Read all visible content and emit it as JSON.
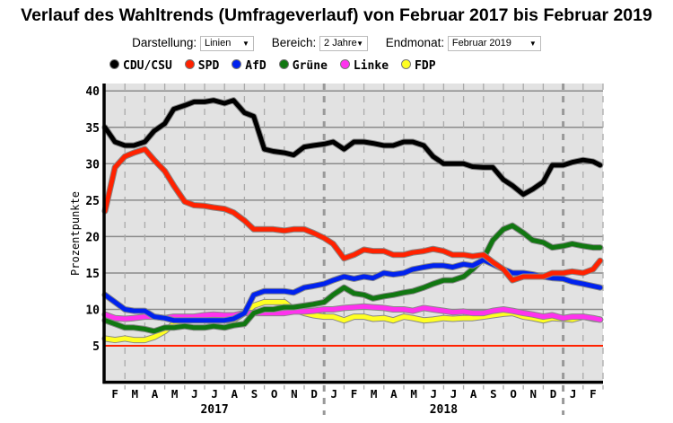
{
  "title": "Verlauf des Wahltrends (Umfrageverlauf) von Februar 2017 bis Februar 2019",
  "controls": [
    {
      "label": "Darstellung:",
      "value": "Linien"
    },
    {
      "label": "Bereich:",
      "value": "2 Jahre"
    },
    {
      "label": "Endmonat:",
      "value": "Februar 2019"
    }
  ],
  "colors": {
    "CDU/CSU": "#000000",
    "SPD": "#ff2200",
    "AfD": "#0022ee",
    "Grüne": "#117711",
    "Linke": "#ff33ee",
    "FDP": "#ffff22",
    "threshold": "#ff2200",
    "plot_bg": "#e2e2e2"
  },
  "chart_data": {
    "type": "line",
    "title": "Verlauf des Wahltrends (Umfrageverlauf) von Februar 2017 bis Februar 2019",
    "ylabel": "Prozentpunkte",
    "ylim": [
      0,
      41
    ],
    "yticks": [
      5,
      10,
      15,
      20,
      25,
      30,
      35,
      40
    ],
    "grid": true,
    "legend": "top",
    "threshold": 5,
    "xlim": [
      "2017-02-01",
      "2019-03-01"
    ],
    "month_labels": [
      "F",
      "M",
      "A",
      "M",
      "J",
      "J",
      "A",
      "S",
      "O",
      "N",
      "D",
      "J",
      "F",
      "M",
      "A",
      "M",
      "J",
      "J",
      "A",
      "S",
      "O",
      "N",
      "D",
      "J",
      "F"
    ],
    "year_labels": [
      {
        "label": "2017",
        "from": "2017-02-01",
        "to": "2018-01-01"
      },
      {
        "label": "2018",
        "from": "2018-01-01",
        "to": "2019-01-01"
      }
    ],
    "dates": [
      "2017-02-01",
      "2017-02-15",
      "2017-03-01",
      "2017-03-15",
      "2017-04-01",
      "2017-04-15",
      "2017-05-01",
      "2017-05-15",
      "2017-06-01",
      "2017-06-15",
      "2017-07-01",
      "2017-07-15",
      "2017-08-01",
      "2017-08-15",
      "2017-09-01",
      "2017-09-15",
      "2017-10-01",
      "2017-10-15",
      "2017-11-01",
      "2017-11-15",
      "2017-12-01",
      "2017-12-15",
      "2018-01-01",
      "2018-01-15",
      "2018-02-01",
      "2018-02-15",
      "2018-03-01",
      "2018-03-15",
      "2018-04-01",
      "2018-04-15",
      "2018-05-01",
      "2018-05-15",
      "2018-06-01",
      "2018-06-15",
      "2018-07-01",
      "2018-07-15",
      "2018-08-01",
      "2018-08-15",
      "2018-09-01",
      "2018-09-15",
      "2018-10-01",
      "2018-10-15",
      "2018-11-01",
      "2018-11-15",
      "2018-12-01",
      "2018-12-15",
      "2019-01-01",
      "2019-01-15",
      "2019-02-01",
      "2019-02-15",
      "2019-02-25"
    ],
    "series": [
      {
        "name": "CDU/CSU",
        "values": [
          35,
          33,
          32.5,
          32.5,
          33,
          34.5,
          35.5,
          37.5,
          38,
          38.5,
          38.5,
          38.7,
          38.3,
          38.7,
          37,
          36.5,
          32,
          31.7,
          31.5,
          31.2,
          32.3,
          32.5,
          32.7,
          33,
          32,
          33,
          33,
          32.8,
          32.5,
          32.5,
          33,
          33,
          32.5,
          31,
          30,
          30,
          30,
          29.6,
          29.5,
          29.5,
          27.8,
          27,
          25.8,
          26.5,
          27.5,
          29.8,
          29.8,
          30.2,
          30.5,
          30.3,
          29.8
        ]
      },
      {
        "name": "SPD",
        "values": [
          23.5,
          29.5,
          31,
          31.5,
          32,
          30.5,
          29,
          27,
          24.8,
          24.3,
          24.2,
          24,
          23.8,
          23.3,
          22.2,
          21,
          21,
          21,
          20.8,
          21,
          21,
          20.5,
          19.8,
          19,
          17,
          17.5,
          18.2,
          18,
          18,
          17.5,
          17.5,
          17.8,
          18,
          18.3,
          18,
          17.5,
          17.5,
          17.3,
          17.5,
          16.5,
          15.5,
          14,
          14.5,
          14.5,
          14.5,
          15,
          15,
          15.2,
          15,
          15.5,
          16.7
        ]
      },
      {
        "name": "AfD",
        "values": [
          12,
          11,
          10,
          9.8,
          9.8,
          9,
          8.8,
          8.5,
          8.5,
          8.5,
          8.5,
          8.5,
          8.5,
          8.7,
          9.5,
          12,
          12.5,
          12.5,
          12.5,
          12.3,
          13,
          13.2,
          13.5,
          14,
          14.5,
          14.2,
          14.5,
          14.3,
          15,
          14.8,
          15,
          15.5,
          15.8,
          16,
          16,
          15.8,
          16.2,
          16,
          16.8,
          16.2,
          15.5,
          15,
          15,
          14.8,
          14.5,
          14.3,
          14.2,
          13.8,
          13.5,
          13.2,
          13
        ]
      },
      {
        "name": "Grüne",
        "values": [
          8.5,
          8,
          7.5,
          7.5,
          7.3,
          7,
          7.5,
          7.5,
          7.7,
          7.5,
          7.5,
          7.7,
          7.5,
          7.8,
          8,
          9.5,
          10,
          10,
          10.3,
          10.3,
          10.5,
          10.7,
          11,
          12,
          13,
          12.2,
          12,
          11.5,
          11.8,
          12,
          12.3,
          12.5,
          13,
          13.5,
          14,
          14,
          14.5,
          15.5,
          17,
          19.5,
          21,
          21.5,
          20.5,
          19.5,
          19.2,
          18.5,
          18.7,
          19,
          18.7,
          18.5,
          18.5
        ]
      },
      {
        "name": "Linke",
        "values": [
          9.3,
          8.8,
          8.7,
          8.8,
          9,
          9,
          8.8,
          9,
          9,
          9,
          9.2,
          9.3,
          9.2,
          9.2,
          9.5,
          9.5,
          9.5,
          9.5,
          9.5,
          9.7,
          9.7,
          9.8,
          10,
          10,
          10.2,
          10.3,
          10.4,
          10.3,
          10.2,
          10,
          10,
          9.8,
          10.2,
          10,
          9.8,
          9.6,
          9.7,
          9.5,
          9.5,
          9.8,
          10,
          9.8,
          9.5,
          9.3,
          9,
          9.2,
          8.8,
          9,
          9,
          8.8,
          8.6
        ]
      },
      {
        "name": "FDP",
        "values": [
          6,
          5.8,
          6,
          5.8,
          5.8,
          6.2,
          7,
          8,
          8.5,
          8.7,
          8.5,
          8.5,
          8.5,
          8.5,
          9.5,
          10.5,
          11,
          11,
          11,
          10,
          9.5,
          9.2,
          9,
          9,
          8.5,
          9,
          9,
          8.7,
          8.8,
          8.5,
          9,
          8.8,
          8.5,
          8.6,
          8.8,
          8.7,
          8.8,
          8.8,
          9,
          9.2,
          9.4,
          9.5,
          9,
          8.8,
          8.5,
          8.8,
          8.7,
          8.6,
          9,
          8.7,
          8.6
        ]
      }
    ]
  }
}
